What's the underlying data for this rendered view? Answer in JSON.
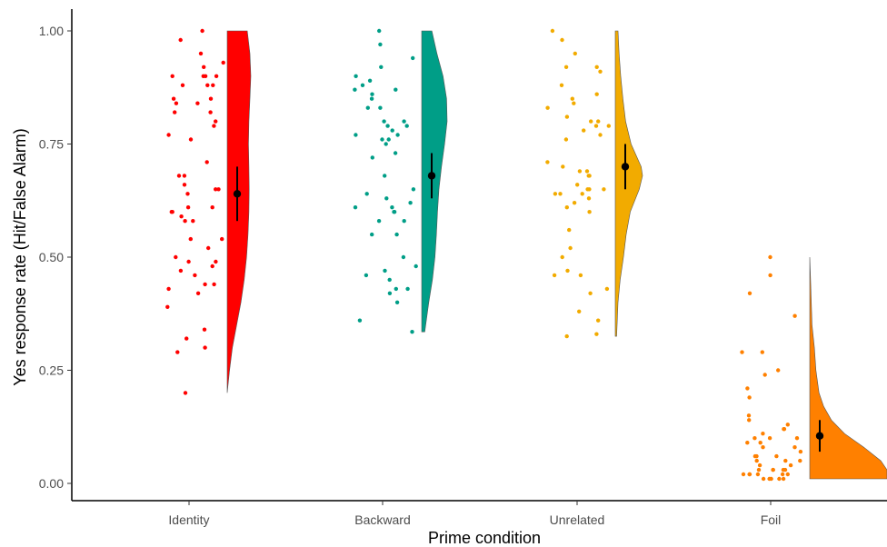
{
  "chart_data": {
    "type": "raincloud",
    "xlabel": "Prime condition",
    "ylabel": "Yes response rate (Hit/False Alarm)",
    "ylim": [
      0,
      1.0
    ],
    "yticks": [
      0.0,
      0.25,
      0.5,
      0.75,
      1.0
    ],
    "ytick_labels": [
      "0.00",
      "0.25",
      "0.50",
      "0.75",
      "1.00"
    ],
    "categories": [
      "Identity",
      "Backward",
      "Unrelated",
      "Foil"
    ],
    "grid": false,
    "legend": "none",
    "series": [
      {
        "category": "Identity",
        "color": "#ff0000",
        "mean": 0.64,
        "ci": [
          0.58,
          0.7
        ],
        "range": [
          0.2,
          1.0
        ],
        "points": [
          1.0,
          0.98,
          0.95,
          0.93,
          0.92,
          0.9,
          0.9,
          0.9,
          0.9,
          0.88,
          0.88,
          0.88,
          0.85,
          0.85,
          0.84,
          0.84,
          0.82,
          0.82,
          0.8,
          0.79,
          0.77,
          0.76,
          0.71,
          0.68,
          0.68,
          0.66,
          0.65,
          0.65,
          0.64,
          0.61,
          0.61,
          0.6,
          0.6,
          0.59,
          0.58,
          0.58,
          0.54,
          0.54,
          0.52,
          0.5,
          0.49,
          0.49,
          0.48,
          0.47,
          0.46,
          0.44,
          0.44,
          0.43,
          0.42,
          0.39,
          0.34,
          0.32,
          0.3,
          0.29,
          0.2
        ],
        "density": [
          [
            0.2,
            0.0
          ],
          [
            0.25,
            0.1
          ],
          [
            0.3,
            0.22
          ],
          [
            0.35,
            0.4
          ],
          [
            0.4,
            0.58
          ],
          [
            0.45,
            0.72
          ],
          [
            0.5,
            0.82
          ],
          [
            0.55,
            0.88
          ],
          [
            0.6,
            0.92
          ],
          [
            0.65,
            0.93
          ],
          [
            0.7,
            0.92
          ],
          [
            0.75,
            0.9
          ],
          [
            0.8,
            0.92
          ],
          [
            0.85,
            0.96
          ],
          [
            0.9,
            1.0
          ],
          [
            0.95,
            0.96
          ],
          [
            1.0,
            0.85
          ]
        ]
      },
      {
        "category": "Backward",
        "color": "#009e87",
        "mean": 0.68,
        "ci": [
          0.63,
          0.73
        ],
        "range": [
          0.335,
          1.0
        ],
        "points": [
          1.0,
          0.97,
          0.94,
          0.92,
          0.9,
          0.89,
          0.88,
          0.87,
          0.87,
          0.86,
          0.85,
          0.83,
          0.83,
          0.8,
          0.8,
          0.79,
          0.79,
          0.78,
          0.77,
          0.77,
          0.76,
          0.76,
          0.75,
          0.73,
          0.72,
          0.68,
          0.65,
          0.64,
          0.63,
          0.62,
          0.61,
          0.61,
          0.6,
          0.6,
          0.58,
          0.58,
          0.55,
          0.55,
          0.5,
          0.48,
          0.47,
          0.46,
          0.45,
          0.43,
          0.43,
          0.42,
          0.4,
          0.36,
          0.335
        ],
        "density": [
          [
            0.335,
            0.12
          ],
          [
            0.4,
            0.28
          ],
          [
            0.45,
            0.42
          ],
          [
            0.5,
            0.52
          ],
          [
            0.55,
            0.58
          ],
          [
            0.6,
            0.62
          ],
          [
            0.65,
            0.68
          ],
          [
            0.7,
            0.78
          ],
          [
            0.75,
            0.9
          ],
          [
            0.8,
            1.0
          ],
          [
            0.85,
            0.98
          ],
          [
            0.9,
            0.84
          ],
          [
            0.95,
            0.6
          ],
          [
            1.0,
            0.4
          ]
        ]
      },
      {
        "category": "Unrelated",
        "color": "#f2ab00",
        "mean": 0.7,
        "ci": [
          0.65,
          0.75
        ],
        "range": [
          0.325,
          1.0
        ],
        "points": [
          1.0,
          0.98,
          0.95,
          0.92,
          0.92,
          0.91,
          0.88,
          0.86,
          0.85,
          0.84,
          0.83,
          0.81,
          0.8,
          0.8,
          0.79,
          0.79,
          0.78,
          0.77,
          0.76,
          0.71,
          0.7,
          0.69,
          0.69,
          0.68,
          0.68,
          0.66,
          0.65,
          0.65,
          0.65,
          0.64,
          0.64,
          0.64,
          0.63,
          0.62,
          0.61,
          0.6,
          0.56,
          0.52,
          0.5,
          0.47,
          0.46,
          0.46,
          0.43,
          0.42,
          0.38,
          0.36,
          0.33,
          0.325
        ],
        "density": [
          [
            0.325,
            0.05
          ],
          [
            0.4,
            0.1
          ],
          [
            0.45,
            0.18
          ],
          [
            0.5,
            0.3
          ],
          [
            0.55,
            0.4
          ],
          [
            0.6,
            0.55
          ],
          [
            0.65,
            0.88
          ],
          [
            0.68,
            1.0
          ],
          [
            0.7,
            0.95
          ],
          [
            0.75,
            0.58
          ],
          [
            0.8,
            0.38
          ],
          [
            0.85,
            0.28
          ],
          [
            0.9,
            0.2
          ],
          [
            0.95,
            0.14
          ],
          [
            1.0,
            0.1
          ]
        ]
      },
      {
        "category": "Foil",
        "color": "#ff8000",
        "mean": 0.105,
        "ci": [
          0.07,
          0.14
        ],
        "range": [
          0.01,
          0.5
        ],
        "points": [
          0.5,
          0.46,
          0.42,
          0.37,
          0.29,
          0.29,
          0.25,
          0.24,
          0.21,
          0.19,
          0.15,
          0.14,
          0.13,
          0.12,
          0.12,
          0.11,
          0.1,
          0.1,
          0.1,
          0.09,
          0.09,
          0.08,
          0.08,
          0.07,
          0.06,
          0.06,
          0.06,
          0.05,
          0.05,
          0.05,
          0.04,
          0.04,
          0.03,
          0.03,
          0.03,
          0.03,
          0.03,
          0.02,
          0.02,
          0.02,
          0.02,
          0.02,
          0.02,
          0.01,
          0.01,
          0.01,
          0.01,
          0.01
        ],
        "density": [
          [
            0.01,
            1.0
          ],
          [
            0.03,
            1.0
          ],
          [
            0.05,
            0.92
          ],
          [
            0.08,
            0.7
          ],
          [
            0.11,
            0.45
          ],
          [
            0.14,
            0.28
          ],
          [
            0.17,
            0.18
          ],
          [
            0.2,
            0.12
          ],
          [
            0.25,
            0.08
          ],
          [
            0.3,
            0.06
          ],
          [
            0.35,
            0.03
          ],
          [
            0.4,
            0.02
          ],
          [
            0.45,
            0.01
          ],
          [
            0.5,
            0.0
          ]
        ]
      }
    ]
  }
}
